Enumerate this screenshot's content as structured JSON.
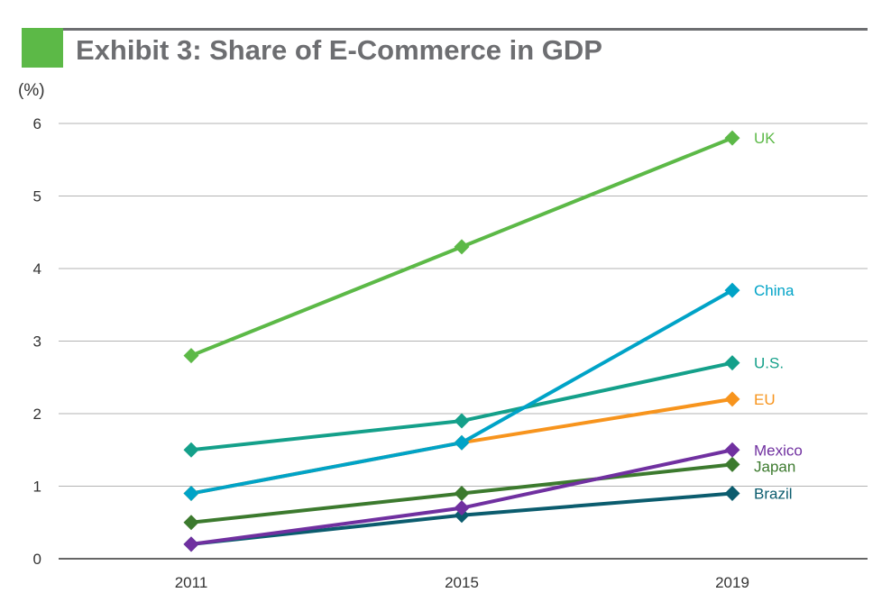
{
  "colors": {
    "accent_square": "#5cb947",
    "title_gray": "#6d6e71",
    "grid": "#b3b3b3",
    "axis": "#333333"
  },
  "header": {
    "title": "Exhibit 3: Share of E-Commerce in GDP",
    "unit": "(%)"
  },
  "chart_data": {
    "type": "line",
    "title": "Exhibit 3: Share of E-Commerce in GDP",
    "ylabel": "(%)",
    "xlabel": "",
    "categories": [
      "2011",
      "2015",
      "2019"
    ],
    "ylim": [
      0,
      6
    ],
    "yticks": [
      "0",
      "1",
      "2",
      "3",
      "4",
      "5",
      "6"
    ],
    "grid": true,
    "legend": "labels at line ends (right)",
    "series": [
      {
        "name": "UK",
        "values": [
          2.8,
          4.3,
          5.8
        ],
        "color": "#5cb947"
      },
      {
        "name": "China",
        "values": [
          0.9,
          1.6,
          3.7
        ],
        "color": "#00a3c7"
      },
      {
        "name": "U.S.",
        "values": [
          1.5,
          1.9,
          2.7
        ],
        "color": "#14a08a"
      },
      {
        "name": "EU",
        "values": [
          0.9,
          1.6,
          2.2
        ],
        "color": "#f7941d"
      },
      {
        "name": "Mexico",
        "values": [
          0.2,
          0.7,
          1.5
        ],
        "color": "#7030a0"
      },
      {
        "name": "Japan",
        "values": [
          0.5,
          0.9,
          1.3
        ],
        "color": "#3c7a2e"
      },
      {
        "name": "Brazil",
        "values": [
          0.2,
          0.6,
          0.9
        ],
        "color": "#0b5c6e"
      }
    ]
  }
}
